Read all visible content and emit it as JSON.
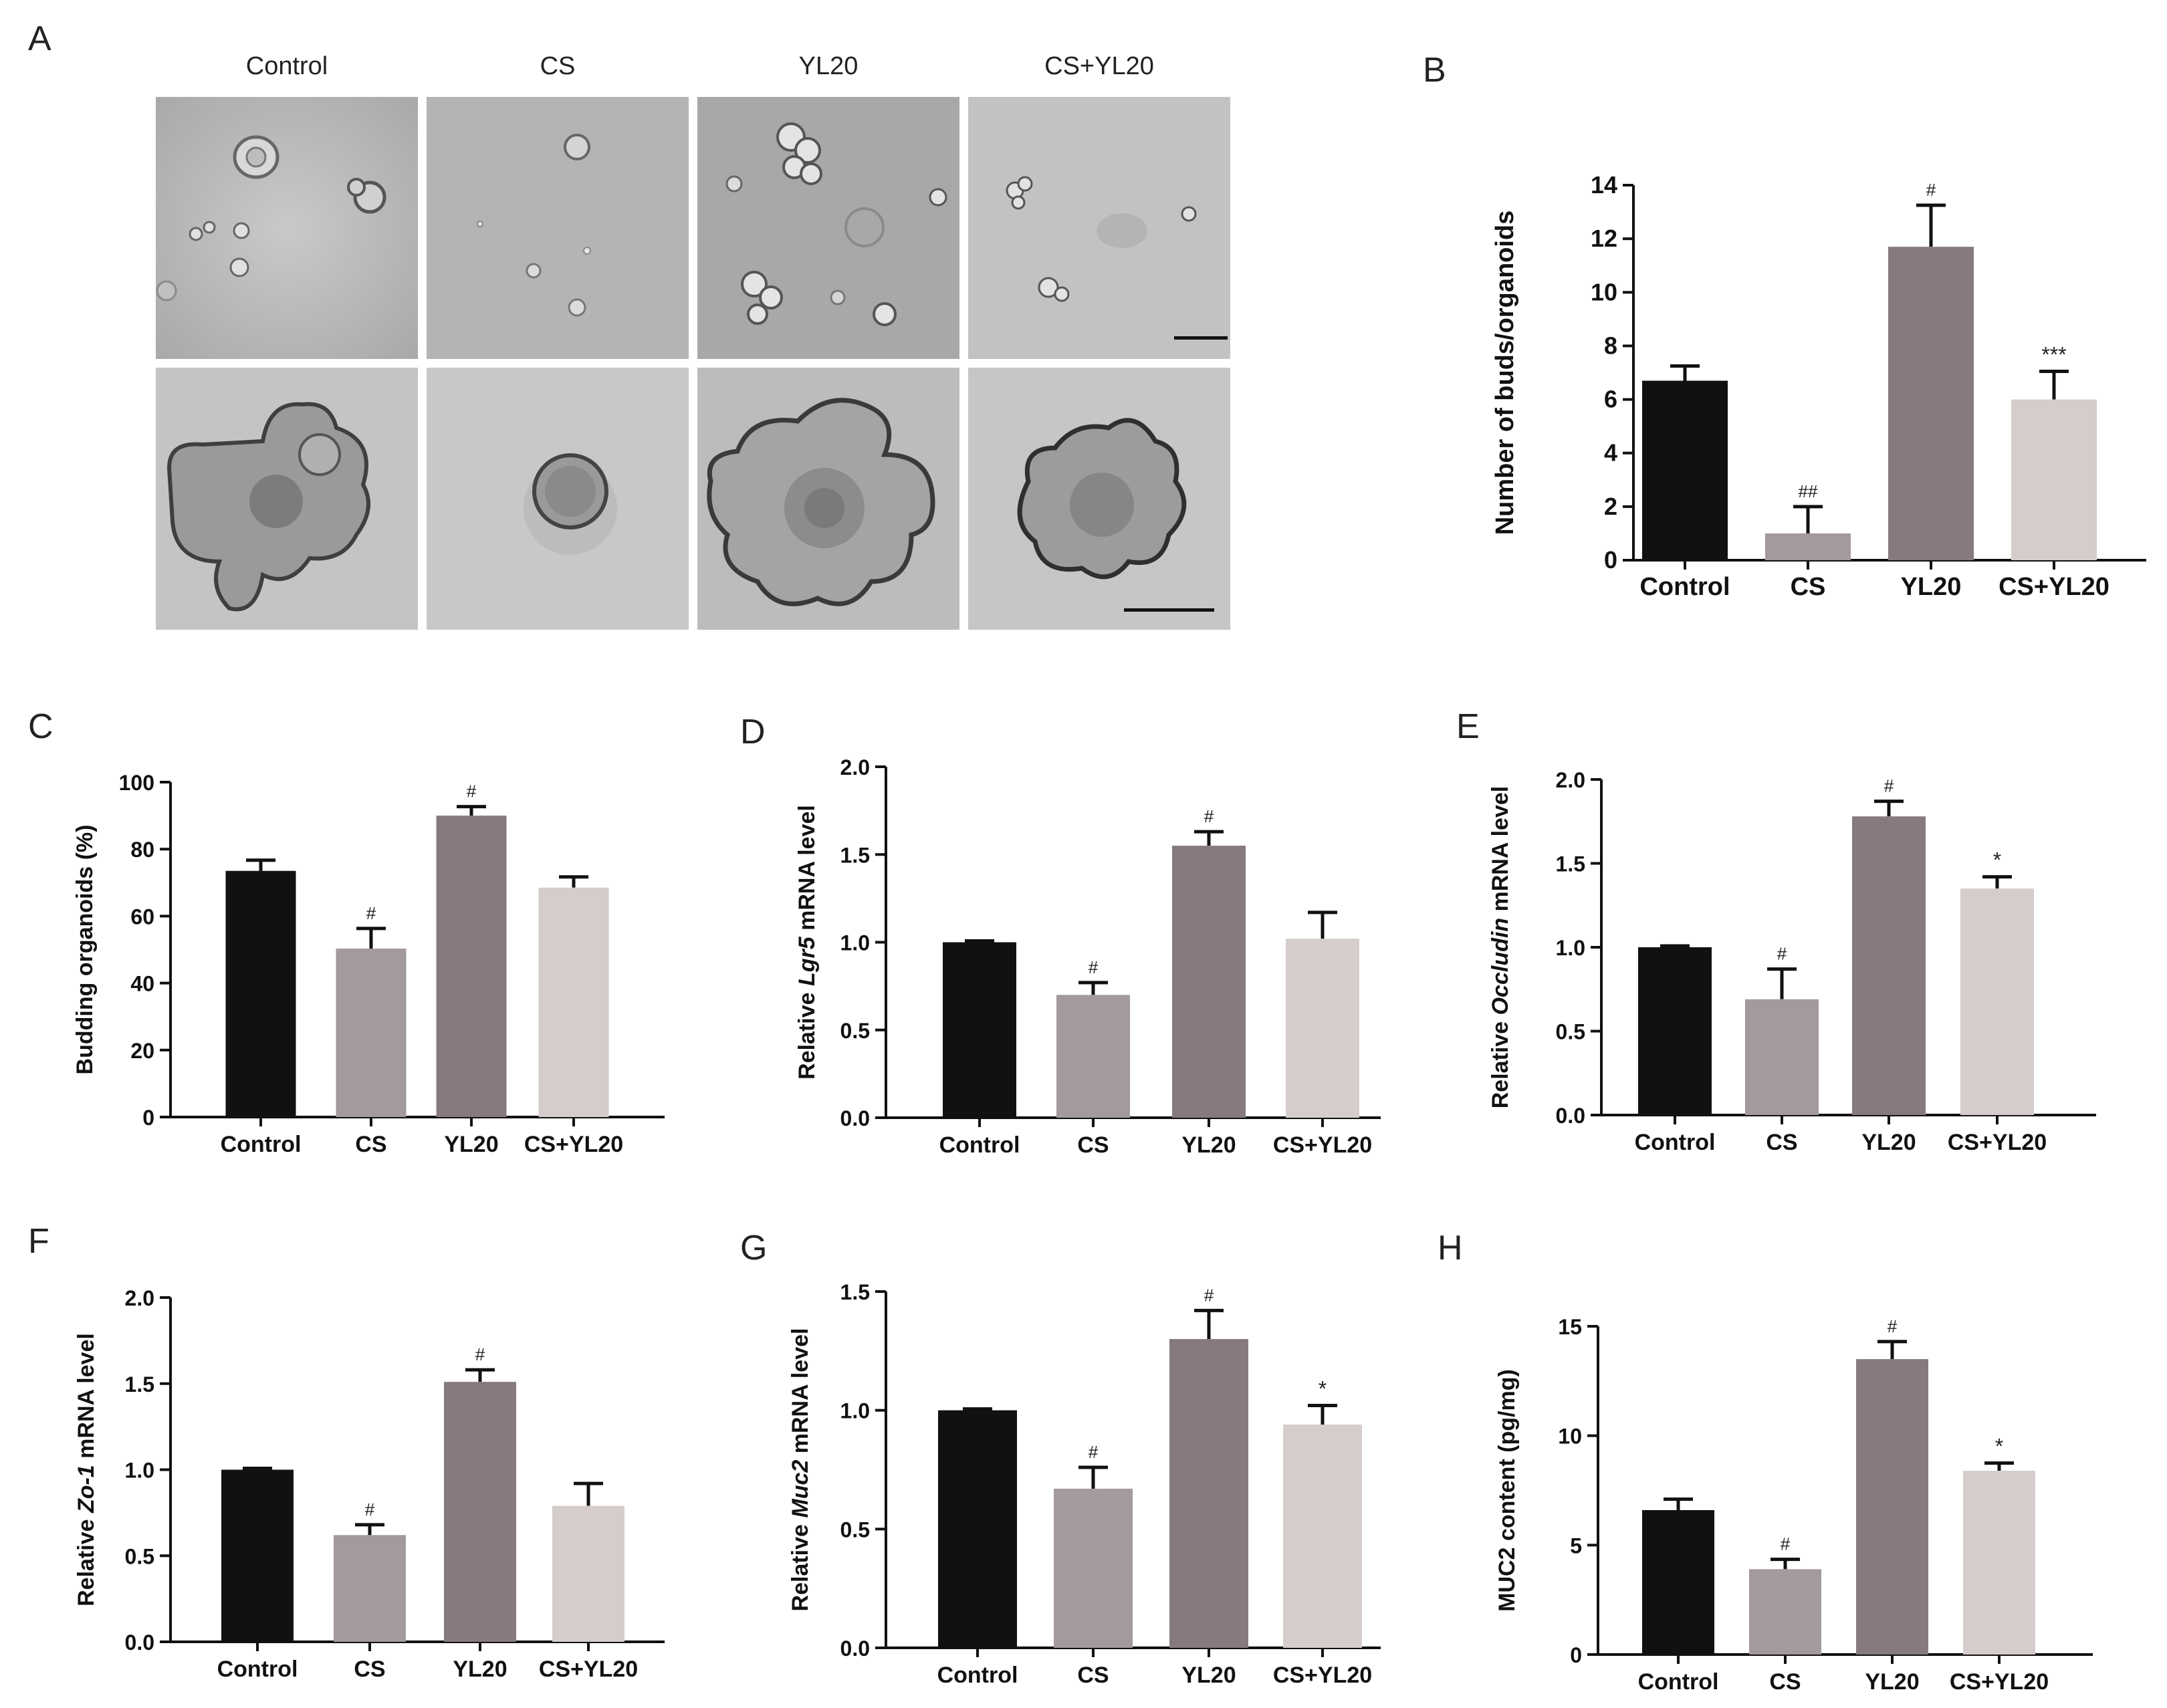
{
  "panel_a": {
    "letter": "A",
    "columns": [
      "Control",
      "CS",
      "YL20",
      "CS+YL20"
    ]
  },
  "colors": {
    "Control": "#111111",
    "CS": "#a29a9c",
    "YL20": "#877a7c",
    "CS+YL20": "#d5cccc"
  },
  "chart_data": [
    {
      "id": "B",
      "letter": "B",
      "type": "bar",
      "categories": [
        "Control",
        "CS",
        "YL20",
        "CS+YL20"
      ],
      "values": [
        6.7,
        1.0,
        11.7,
        6.0
      ],
      "errors": [
        0.55,
        1.0,
        1.55,
        1.05
      ],
      "annotations": [
        "",
        "##",
        "#",
        "***"
      ],
      "ylabel": "Number of buds/organoids",
      "ylim": [
        0,
        14
      ],
      "yticks": [
        "0",
        "2",
        "4",
        "6",
        "8",
        "10",
        "12",
        "14"
      ]
    },
    {
      "id": "C",
      "letter": "C",
      "type": "bar",
      "categories": [
        "Control",
        "CS",
        "YL20",
        "CS+YL20"
      ],
      "values": [
        73.5,
        50.3,
        90.0,
        68.5
      ],
      "errors": [
        3.2,
        6.0,
        2.7,
        3.2
      ],
      "annotations": [
        "",
        "#",
        "#",
        ""
      ],
      "ylabel": "Budding organoids (%)",
      "ylim": [
        0,
        100
      ],
      "yticks": [
        "0",
        "20",
        "40",
        "60",
        "80",
        "100"
      ]
    },
    {
      "id": "D",
      "letter": "D",
      "type": "bar",
      "categories": [
        "Control",
        "CS",
        "YL20",
        "CS+YL20"
      ],
      "values": [
        1.0,
        0.7,
        1.55,
        1.02
      ],
      "errors": [
        0.0,
        0.07,
        0.08,
        0.15
      ],
      "annotations": [
        "",
        "#",
        "#",
        ""
      ],
      "ylabel_parts": [
        "Relative ",
        "Lgr5",
        " mRNA level"
      ],
      "ylim": [
        0,
        2.0
      ],
      "yticks": [
        "0.0",
        "0.5",
        "1.0",
        "1.5",
        "2.0"
      ]
    },
    {
      "id": "E",
      "letter": "E",
      "type": "bar",
      "categories": [
        "Control",
        "CS",
        "YL20",
        "CS+YL20"
      ],
      "values": [
        1.0,
        0.69,
        1.78,
        1.35
      ],
      "errors": [
        0.0,
        0.18,
        0.09,
        0.07
      ],
      "annotations": [
        "",
        "#",
        "#",
        "*"
      ],
      "ylabel_parts": [
        "Relative ",
        "Occludin",
        " mRNA level"
      ],
      "ylim": [
        0,
        2.0
      ],
      "yticks": [
        "0.0",
        "0.5",
        "1.0",
        "1.5",
        "2.0"
      ]
    },
    {
      "id": "F",
      "letter": "F",
      "type": "bar",
      "categories": [
        "Control",
        "CS",
        "YL20",
        "CS+YL20"
      ],
      "values": [
        1.0,
        0.62,
        1.51,
        0.79
      ],
      "errors": [
        0.0,
        0.06,
        0.07,
        0.13
      ],
      "annotations": [
        "",
        "#",
        "#",
        ""
      ],
      "ylabel_parts": [
        "Relative ",
        "Zo-1",
        " mRNA level"
      ],
      "ylim": [
        0,
        2.0
      ],
      "yticks": [
        "0.0",
        "0.5",
        "1.0",
        "1.5",
        "2.0"
      ]
    },
    {
      "id": "G",
      "letter": "G",
      "type": "bar",
      "categories": [
        "Control",
        "CS",
        "YL20",
        "CS+YL20"
      ],
      "values": [
        1.0,
        0.67,
        1.3,
        0.94
      ],
      "errors": [
        0.0,
        0.09,
        0.12,
        0.08
      ],
      "annotations": [
        "",
        "#",
        "#",
        "*"
      ],
      "ylabel_parts": [
        "Relative ",
        "Muc2",
        " mRNA level"
      ],
      "ylim": [
        0,
        1.5
      ],
      "yticks": [
        "0.0",
        "0.5",
        "1.0",
        "1.5"
      ]
    },
    {
      "id": "H",
      "letter": "H",
      "type": "bar",
      "categories": [
        "Control",
        "CS",
        "YL20",
        "CS+YL20"
      ],
      "values": [
        6.6,
        3.9,
        13.5,
        8.4
      ],
      "errors": [
        0.5,
        0.45,
        0.8,
        0.35
      ],
      "annotations": [
        "",
        "#",
        "#",
        "*"
      ],
      "ylabel": "MUC2 content (pg/mg)",
      "ylim": [
        0,
        15
      ],
      "yticks": [
        "0",
        "5",
        "10",
        "15"
      ]
    }
  ]
}
